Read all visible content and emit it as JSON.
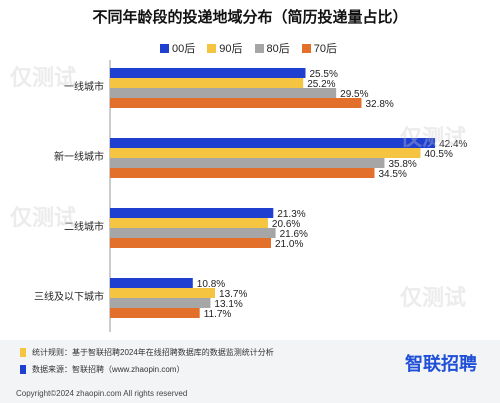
{
  "title": "不同年龄段的投递地域分布（简历投递量占比）",
  "legend": [
    {
      "name": "00后",
      "color": "#1f3fd1"
    },
    {
      "name": "90后",
      "color": "#f5c542"
    },
    {
      "name": "80后",
      "color": "#a6a6a6"
    },
    {
      "name": "70后",
      "color": "#e2702a"
    }
  ],
  "chart_data": {
    "type": "bar",
    "orientation": "horizontal",
    "categories": [
      "一线城市",
      "新一线城市",
      "二线城市",
      "三线及以下城市"
    ],
    "series": [
      {
        "name": "00后",
        "values": [
          25.5,
          42.4,
          21.3,
          10.8
        ]
      },
      {
        "name": "90后",
        "values": [
          25.2,
          40.5,
          20.6,
          13.7
        ]
      },
      {
        "name": "80后",
        "values": [
          29.5,
          35.8,
          21.6,
          13.1
        ]
      },
      {
        "name": "70后",
        "values": [
          32.8,
          34.5,
          21.0,
          11.7
        ]
      }
    ],
    "value_labels": [
      [
        "25.5%",
        "42.4%",
        "21.3%",
        "10.8%"
      ],
      [
        "25.2%",
        "40.5%",
        "20.6%",
        "13.7%"
      ],
      [
        "29.5%",
        "35.8%",
        "21.6%",
        "13.1%"
      ],
      [
        "32.8%",
        "34.5%",
        "21.0%",
        "11.7%"
      ]
    ],
    "xlim": [
      0,
      45
    ],
    "grid": false,
    "legend_position": "top"
  },
  "footer": {
    "rule_text": "统计规则：基于智联招聘2024年在线招聘数据库的数据监测统计分析",
    "source_text": "数据来源：智联招聘（www.zhaopin.com）",
    "logo_text": "智联招聘",
    "copyright": "Copyright©2024 zhaopin.com All rights reserved",
    "marks": {
      "rule_color": "#f5c542",
      "source_color": "#1f3fd1"
    }
  },
  "watermark": "仅测试"
}
